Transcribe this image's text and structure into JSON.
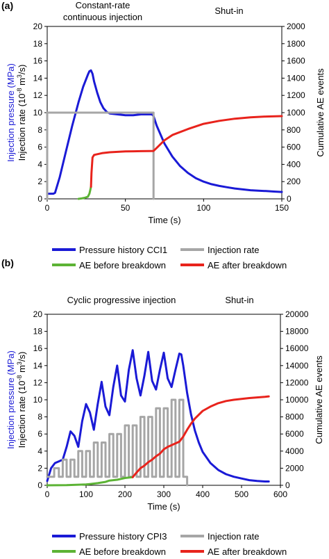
{
  "panel_a": {
    "label": "(a)",
    "phase_left_line1": "Constant-rate",
    "phase_left_line2": "continuous injection",
    "phase_right": "Shut-in",
    "legend": [
      {
        "label": "Pressure history CCI1",
        "color": "#1a1ad6"
      },
      {
        "label": "Injection rate",
        "color": "#a6a6a6"
      },
      {
        "label": "AE before breakdown",
        "color": "#5cb335"
      },
      {
        "label": "AE after breakdown",
        "color": "#e8231c"
      }
    ]
  },
  "panel_b": {
    "label": "(b)",
    "phase_left": "Cyclic progressive injection",
    "phase_right": "Shut-in",
    "legend": [
      {
        "label": "Pressure history CPI3",
        "color": "#1a1ad6"
      },
      {
        "label": "Injection rate",
        "color": "#a6a6a6"
      },
      {
        "label": "AE before breakdown",
        "color": "#5cb335"
      },
      {
        "label": "AE after breakdown",
        "color": "#e8231c"
      }
    ]
  },
  "chart_data": [
    {
      "type": "line",
      "xlabel": "Time (s)",
      "ylabel_blue": "Injection pressure (MPa)",
      "ylabel_black": "Injection rate (10",
      "ylabel_sup": "-8",
      "ylabel_black2": " m",
      "ylabel_sup2": "3",
      "ylabel_black3": "/s)",
      "y2label": "Cumulative AE events",
      "xlim": [
        0,
        150
      ],
      "ylim": [
        0,
        20
      ],
      "y2lim": [
        0,
        2000
      ],
      "xticks": [
        "0",
        "50",
        "100",
        "150"
      ],
      "yticks": [
        "0",
        "2",
        "4",
        "6",
        "8",
        "10",
        "12",
        "14",
        "16",
        "18",
        "20"
      ],
      "y2ticks": [
        "0",
        "200",
        "400",
        "600",
        "800",
        "1000",
        "1200",
        "1400",
        "1600",
        "1800",
        "2000"
      ],
      "grid": false,
      "series": [
        {
          "name": "Pressure history CCI1",
          "axis": "left",
          "color": "#1a1ad6",
          "x": [
            0,
            4,
            5,
            8,
            12,
            16,
            20,
            23,
            26,
            27,
            28,
            29,
            30,
            32,
            34,
            36,
            38,
            40,
            45,
            50,
            55,
            60,
            65,
            67,
            68,
            70,
            75,
            80,
            85,
            90,
            95,
            100,
            105,
            110,
            115,
            120,
            125,
            130,
            135,
            140,
            145,
            150
          ],
          "y": [
            0.6,
            0.6,
            0.7,
            2.5,
            5.5,
            8.5,
            11.2,
            13.0,
            14.4,
            14.8,
            14.9,
            14.5,
            13.6,
            12.3,
            11.2,
            10.5,
            10.1,
            9.9,
            9.8,
            9.7,
            9.7,
            9.8,
            9.8,
            9.8,
            9.6,
            8.5,
            6.4,
            4.9,
            3.8,
            3.0,
            2.4,
            2.0,
            1.7,
            1.5,
            1.35,
            1.2,
            1.1,
            1.0,
            0.95,
            0.9,
            0.85,
            0.8
          ]
        },
        {
          "name": "Injection rate",
          "axis": "left",
          "color": "#a6a6a6",
          "x": [
            0,
            0,
            68,
            68,
            68
          ],
          "y": [
            0,
            10,
            10,
            10,
            0
          ]
        },
        {
          "name": "AE before breakdown",
          "axis": "right",
          "color": "#5cb335",
          "x": [
            20,
            22,
            24,
            26,
            27,
            27.5,
            28
          ],
          "y": [
            0,
            5,
            12,
            25,
            60,
            100,
            140
          ]
        },
        {
          "name": "AE after breakdown",
          "axis": "right",
          "color": "#e8231c",
          "x": [
            28,
            28.3,
            29,
            30,
            35,
            40,
            45,
            50,
            55,
            60,
            65,
            68,
            70,
            75,
            80,
            90,
            100,
            110,
            120,
            130,
            140,
            150
          ],
          "y": [
            140,
            300,
            480,
            510,
            530,
            540,
            545,
            550,
            552,
            553,
            555,
            556,
            590,
            680,
            740,
            810,
            870,
            905,
            930,
            945,
            955,
            960
          ]
        }
      ]
    },
    {
      "type": "line",
      "xlabel": "Time (s)",
      "ylabel_blue": "Injection pressure (MPa)",
      "ylabel_black": "Injection rate (10",
      "ylabel_sup": "-8",
      "ylabel_black2": " m",
      "ylabel_sup2": "3",
      "ylabel_black3": "/s)",
      "y2label": "Cumulative AE events",
      "xlim": [
        0,
        600
      ],
      "ylim": [
        0,
        20
      ],
      "y2lim": [
        0,
        20000
      ],
      "xticks": [
        "0",
        "100",
        "200",
        "300",
        "400",
        "500",
        "600"
      ],
      "yticks": [
        "0",
        "2",
        "4",
        "6",
        "8",
        "10",
        "12",
        "14",
        "16",
        "18",
        "20"
      ],
      "y2ticks": [
        "0",
        "2000",
        "4000",
        "6000",
        "8000",
        "10000",
        "12000",
        "14000",
        "16000",
        "18000",
        "20000"
      ],
      "grid": false,
      "series": [
        {
          "name": "Pressure history CPI3",
          "axis": "left",
          "color": "#1a1ad6",
          "x": [
            0,
            10,
            20,
            30,
            40,
            50,
            60,
            70,
            80,
            90,
            100,
            110,
            120,
            130,
            140,
            150,
            160,
            170,
            180,
            190,
            200,
            210,
            220,
            230,
            240,
            250,
            260,
            270,
            280,
            290,
            300,
            310,
            320,
            330,
            340,
            345,
            350,
            360,
            370,
            380,
            390,
            400,
            420,
            440,
            460,
            480,
            500,
            520,
            540,
            560,
            570
          ],
          "y": [
            0.5,
            2.0,
            2.6,
            2.8,
            3.0,
            4.5,
            6.3,
            5.8,
            4.5,
            7.5,
            9.5,
            8.5,
            6.5,
            9.5,
            12.1,
            9.2,
            8.2,
            11.5,
            14.0,
            10.5,
            9.8,
            13.5,
            15.8,
            12.5,
            10.5,
            12.8,
            15.6,
            12.2,
            11.2,
            13.5,
            15.5,
            12.5,
            11.5,
            13.5,
            15.4,
            15.3,
            14.0,
            10.8,
            8.3,
            6.4,
            5.0,
            3.9,
            2.6,
            1.8,
            1.3,
            1.0,
            0.8,
            0.6,
            0.5,
            0.45,
            0.45
          ]
        },
        {
          "name": "Injection rate",
          "axis": "left",
          "color": "#a6a6a6",
          "x": [
            0,
            18,
            18,
            30,
            30,
            40,
            40,
            50,
            50,
            60,
            60,
            70,
            70,
            80,
            80,
            90,
            90,
            100,
            100,
            110,
            110,
            120,
            120,
            130,
            130,
            140,
            140,
            150,
            150,
            160,
            160,
            170,
            170,
            180,
            180,
            190,
            190,
            200,
            200,
            210,
            210,
            220,
            220,
            230,
            230,
            240,
            240,
            250,
            250,
            260,
            260,
            270,
            270,
            280,
            280,
            290,
            290,
            300,
            300,
            310,
            310,
            320,
            320,
            330,
            330,
            340,
            340,
            350,
            350,
            360,
            360
          ],
          "y": [
            1,
            1,
            2,
            2,
            1,
            1,
            3,
            3,
            1,
            1,
            3,
            3,
            1,
            1,
            4,
            4,
            1,
            1,
            4,
            4,
            1,
            1,
            5,
            5,
            1,
            1,
            5,
            5,
            1,
            1,
            6,
            6,
            1,
            1,
            6,
            6,
            1,
            1,
            7,
            7,
            1,
            1,
            7,
            7,
            1,
            1,
            8,
            8,
            1,
            1,
            8,
            8,
            1,
            1,
            9,
            9,
            1,
            1,
            9,
            9,
            1,
            1,
            10,
            10,
            1,
            1,
            10,
            10,
            1,
            1,
            0
          ]
        },
        {
          "name": "AE before breakdown",
          "axis": "right",
          "color": "#5cb335",
          "x": [
            0,
            50,
            100,
            130,
            150,
            160,
            180,
            190,
            200,
            210,
            220
          ],
          "y": [
            0,
            20,
            100,
            250,
            400,
            550,
            650,
            750,
            850,
            900,
            950
          ]
        },
        {
          "name": "AE after breakdown",
          "axis": "right",
          "color": "#e8231c",
          "x": [
            220,
            230,
            240,
            250,
            260,
            270,
            280,
            290,
            300,
            310,
            320,
            330,
            340,
            350,
            360,
            370,
            380,
            400,
            420,
            440,
            460,
            480,
            500,
            520,
            540,
            560,
            570
          ],
          "y": [
            950,
            1500,
            2000,
            2300,
            2700,
            3000,
            3400,
            3700,
            4200,
            4500,
            4700,
            4900,
            5100,
            5700,
            6500,
            7200,
            7800,
            8700,
            9200,
            9600,
            9850,
            10000,
            10100,
            10200,
            10280,
            10350,
            10400
          ]
        }
      ]
    }
  ]
}
